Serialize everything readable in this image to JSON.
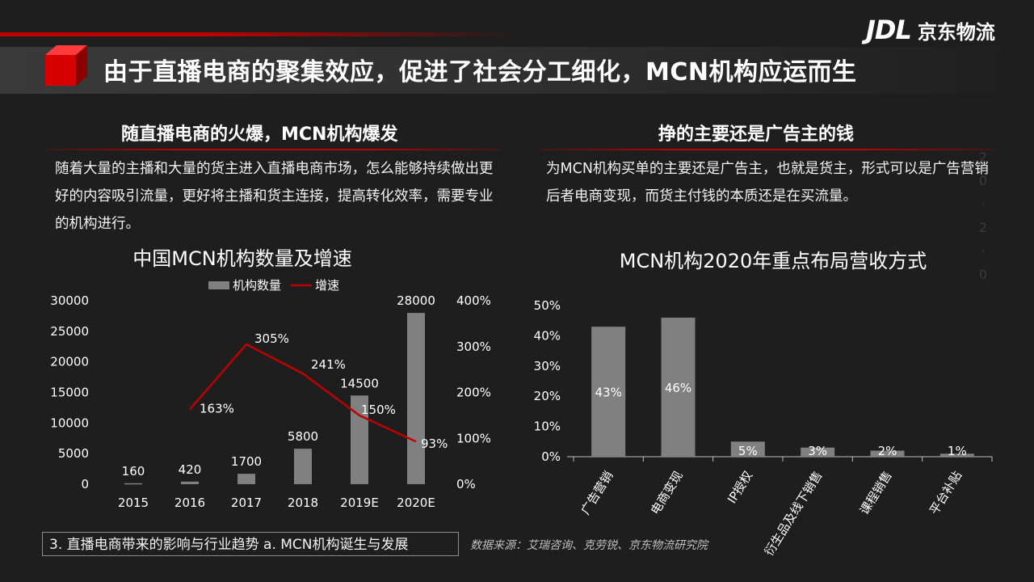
{
  "header": {
    "title": "由于直播电商的聚集效应，促进了社会分工细化，MCN机构应运而生",
    "logo_mark": "JDL",
    "logo_text": "京东物流"
  },
  "left": {
    "heading": "随直播电商的火爆，MCN机构爆发",
    "paragraph": "随着大量的主播和大量的货主进入直播电商市场，怎么能够持续做出更好的内容吸引流量，更好将主播和货主连接，提高转化效率，需要专业的机构进行。"
  },
  "right": {
    "heading": "挣的主要还是广告主的钱",
    "paragraph": "为MCN机构买单的主要还是广告主，也就是货主，形式可以是广告营销后者电商变现，而货主付钱的本质还是在买流量。"
  },
  "decor_text": [
    "2",
    "0",
    "·",
    "2",
    "·",
    "0"
  ],
  "footer": {
    "section": "3. 直播电商带来的影响与行业趋势   a. MCN机构诞生与发展",
    "source": "数据来源：艾瑞咨询、克劳锐、京东物流研究院"
  },
  "colors": {
    "accent": "#c00000",
    "bar": "#808080",
    "background": "#1e1e1e"
  },
  "chart_data": [
    {
      "type": "bar",
      "title": "中国MCN机构数量及增速",
      "categories": [
        "2015",
        "2016",
        "2017",
        "2018",
        "2019E",
        "2020E"
      ],
      "series": [
        {
          "name": "机构数量",
          "type": "bar",
          "axis": "left",
          "values": [
            160,
            420,
            1700,
            5800,
            14500,
            28000
          ],
          "labels": [
            "160",
            "420",
            "1700",
            "5800",
            "14500",
            "28000"
          ]
        },
        {
          "name": "增速",
          "type": "line",
          "axis": "right",
          "values": [
            null,
            163,
            305,
            241,
            150,
            93
          ],
          "labels": [
            "",
            "163%",
            "305%",
            "241%",
            "150%",
            "93%"
          ]
        }
      ],
      "y_left": {
        "min": 0,
        "max": 30000,
        "ticks": [
          "0",
          "5000",
          "10000",
          "15000",
          "20000",
          "25000",
          "30000"
        ]
      },
      "y_right": {
        "min": 0,
        "max": 400,
        "ticks": [
          "0%",
          "100%",
          "200%",
          "300%",
          "400%"
        ]
      },
      "legend": "top-center",
      "grid": false
    },
    {
      "type": "bar",
      "title": "MCN机构2020年重点布局营收方式",
      "categories": [
        "广告营销",
        "电商变现",
        "IP授权",
        "衍生品及线下销售",
        "课程销售",
        "平台补贴"
      ],
      "values": [
        43,
        46,
        5,
        3,
        2,
        1
      ],
      "labels": [
        "43%",
        "46%",
        "5%",
        "3%",
        "2%",
        "1%"
      ],
      "y": {
        "min": 0,
        "max": 50,
        "ticks": [
          "0%",
          "10%",
          "20%",
          "30%",
          "40%",
          "50%"
        ]
      },
      "grid": false
    }
  ]
}
